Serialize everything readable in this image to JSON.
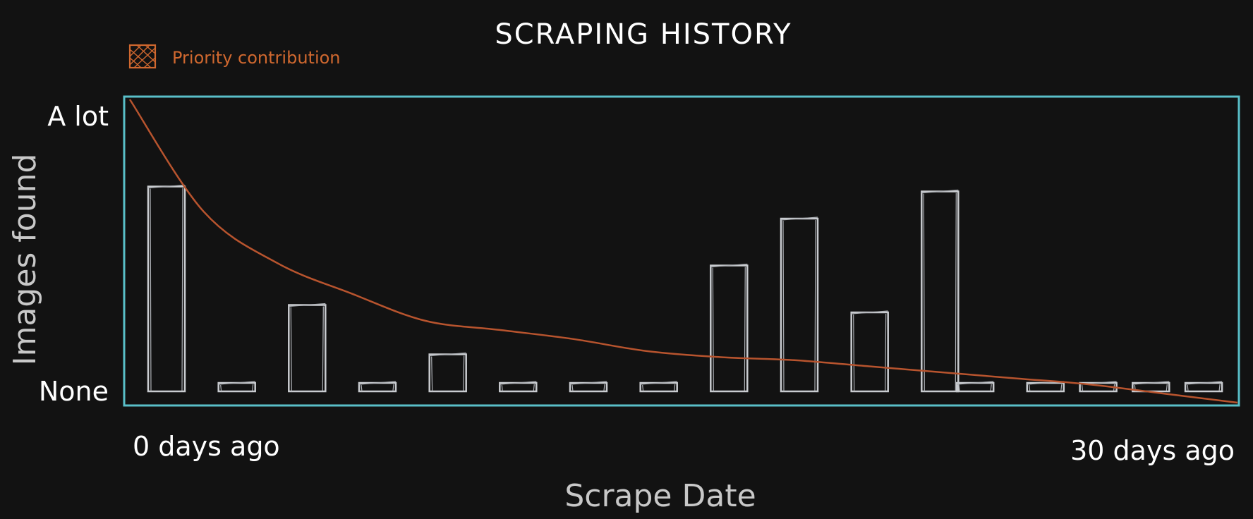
{
  "chart_data": {
    "type": "bar",
    "title": "SCRAPING HISTORY",
    "legend": {
      "label": "Priority contribution",
      "color": "#d0682f",
      "position": "top-left"
    },
    "xlabel": "Scrape Date",
    "ylabel": "Images found",
    "x_tick_labels": [
      "0 days ago",
      "30 days ago"
    ],
    "y_tick_labels": [
      "None",
      "A lot"
    ],
    "ylim": [
      0,
      1
    ],
    "grid": false,
    "bar_color": "#c9ccd0",
    "frame_color": "#59bfc8",
    "series": [
      {
        "type": "bar",
        "x": [
          0,
          2,
          4,
          6,
          8,
          10,
          12,
          14,
          16,
          18,
          20,
          22,
          23,
          25,
          26.5,
          28,
          29.5
        ],
        "values": [
          0.83,
          0.02,
          0.35,
          0.02,
          0.15,
          0.02,
          0.02,
          0.02,
          0.51,
          0.7,
          0.32,
          0.81,
          0.03,
          0.02,
          0.02,
          0.02,
          0.02
        ]
      },
      {
        "name": "Priority contribution",
        "type": "line",
        "color": "#b8542e",
        "x": [
          0,
          2,
          4,
          6,
          8,
          10,
          12,
          14,
          16,
          18,
          20,
          22,
          24,
          26,
          28,
          30
        ],
        "values": [
          1.0,
          0.63,
          0.46,
          0.36,
          0.27,
          0.24,
          0.21,
          0.17,
          0.15,
          0.14,
          0.12,
          0.1,
          0.08,
          0.06,
          0.03,
          0.0
        ]
      }
    ]
  }
}
